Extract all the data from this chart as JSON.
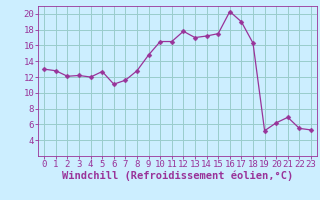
{
  "x": [
    0,
    1,
    2,
    3,
    4,
    5,
    6,
    7,
    8,
    9,
    10,
    11,
    12,
    13,
    14,
    15,
    16,
    17,
    18,
    19,
    20,
    21,
    22,
    23
  ],
  "y": [
    13.0,
    12.8,
    12.1,
    12.2,
    12.0,
    12.7,
    11.1,
    11.6,
    12.8,
    14.8,
    16.5,
    16.5,
    17.8,
    17.0,
    17.2,
    17.5,
    20.3,
    19.0,
    16.3,
    5.2,
    6.2,
    6.9,
    5.5,
    5.3
  ],
  "line_color": "#993399",
  "marker": "D",
  "marker_size": 2.5,
  "bg_color": "#cceeff",
  "grid_color": "#99cccc",
  "xlabel": "Windchill (Refroidissement éolien,°C)",
  "xlabel_color": "#993399",
  "ylim": [
    2,
    21
  ],
  "xlim": [
    -0.5,
    23.5
  ],
  "yticks": [
    4,
    6,
    8,
    10,
    12,
    14,
    16,
    18,
    20
  ],
  "xticks": [
    0,
    1,
    2,
    3,
    4,
    5,
    6,
    7,
    8,
    9,
    10,
    11,
    12,
    13,
    14,
    15,
    16,
    17,
    18,
    19,
    20,
    21,
    22,
    23
  ],
  "tick_color": "#993399",
  "tick_fontsize": 6.5,
  "xlabel_fontsize": 7.5
}
